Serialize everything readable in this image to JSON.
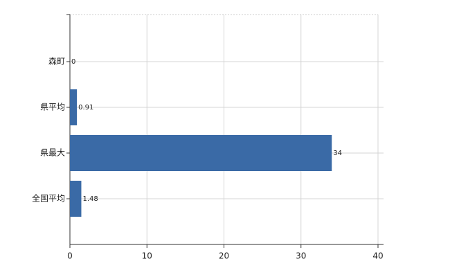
{
  "chart_data": {
    "type": "bar",
    "orientation": "horizontal",
    "categories": [
      "森町",
      "県平均",
      "県最大",
      "全国平均"
    ],
    "values": [
      0,
      0.91,
      34,
      1.48
    ],
    "color": "#3a6aa6",
    "xlim": [
      0,
      40
    ],
    "xticks": [
      0,
      10,
      20,
      30,
      40
    ],
    "grid": true
  }
}
